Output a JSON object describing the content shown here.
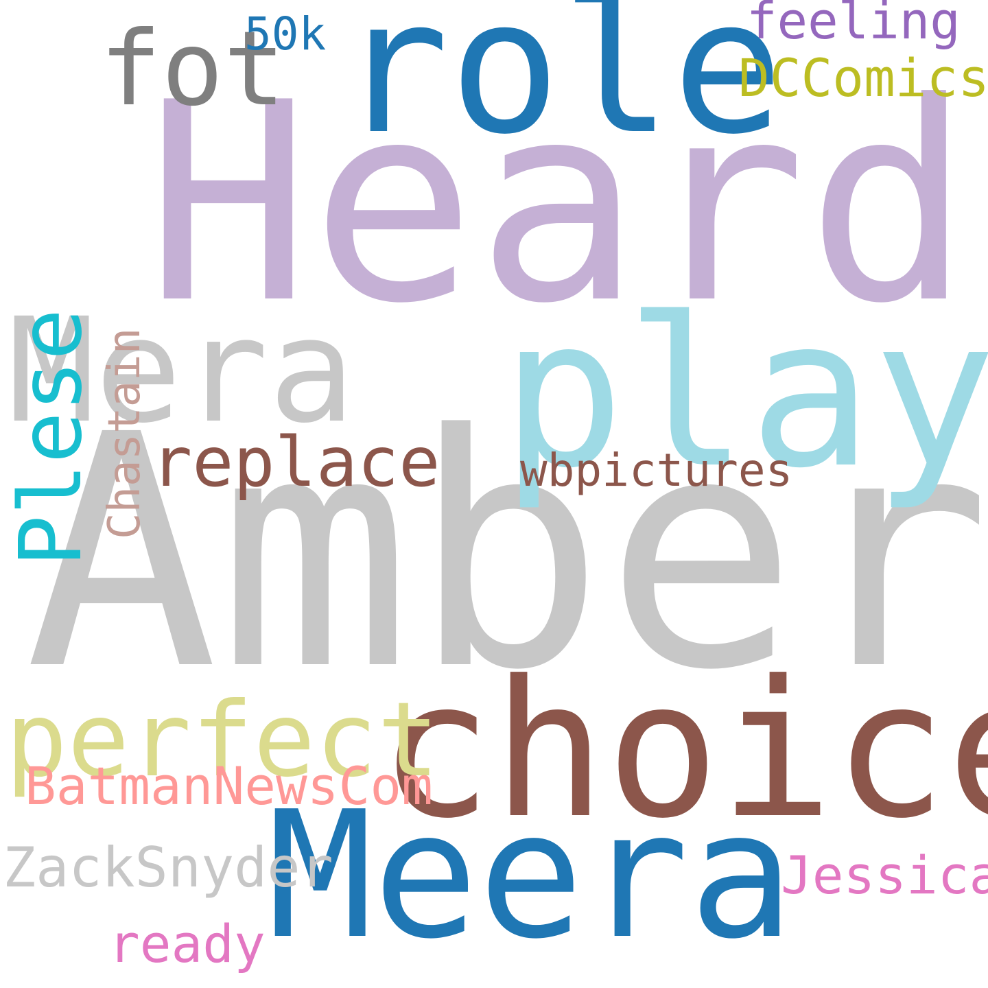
{
  "words": [
    {
      "text": "Amber",
      "color": "#c7c7c7"
    },
    {
      "text": "Heard",
      "color": "#c5b0d5"
    },
    {
      "text": "choice",
      "color": "#8c564b"
    },
    {
      "text": "Meera",
      "color": "#1f77b4"
    },
    {
      "text": "role",
      "color": "#1f77b4"
    },
    {
      "text": "Mera",
      "color": "#c7c7c7"
    },
    {
      "text": "play",
      "color": "#9edae5"
    },
    {
      "text": "perfect",
      "color": "#dbdb8d"
    },
    {
      "text": "Plese",
      "color": "#17becf"
    },
    {
      "text": "fot",
      "color": "#7f7f7f"
    },
    {
      "text": "replace",
      "color": "#8c564b"
    },
    {
      "text": "BatmanNewsCom",
      "color": "#ff9896"
    },
    {
      "text": "ZackSnyder",
      "color": "#c7c7c7"
    },
    {
      "text": "wbpictures",
      "color": "#8c564b"
    },
    {
      "text": "DCComics",
      "color": "#bcbd22"
    },
    {
      "text": "feeling",
      "color": "#9467bd"
    },
    {
      "text": "Jessica",
      "color": "#e377c2"
    },
    {
      "text": "Chastain",
      "color": "#c49c94"
    },
    {
      "text": "ready",
      "color": "#e377c2"
    },
    {
      "text": "50k",
      "color": "#1f77b4"
    }
  ]
}
